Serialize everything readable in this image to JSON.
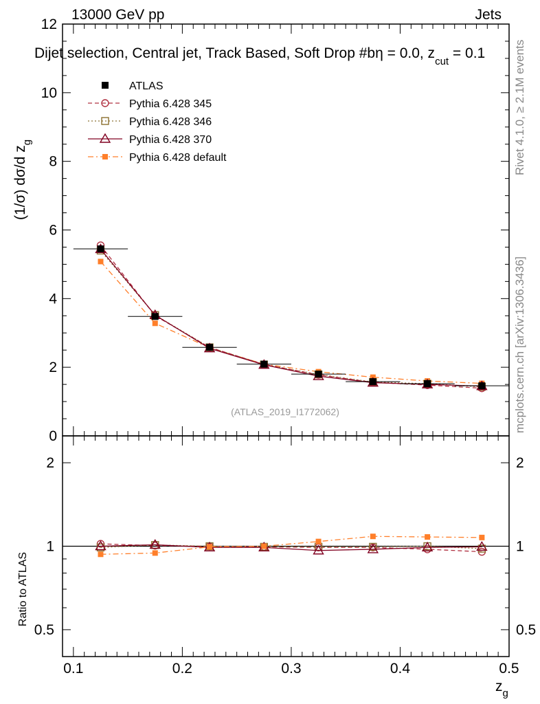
{
  "header": {
    "energy_label": "13000 GeV pp",
    "category_label": "Jets",
    "plot_title_main": "Dijet selection, Central jet, Track Based, Soft Drop #b",
    "plot_title_eta": "η = 0.0, z",
    "plot_title_cut_sub": "cut",
    "plot_title_value": " = 0.1"
  },
  "side_labels": {
    "rivet": "Rivet 4.1.0, ≥ 2.1M events",
    "mcplots": "mcplots.cern.ch [arXiv:1306.3436]"
  },
  "watermark": "(ATLAS_2019_I1772062)",
  "colors": {
    "atlas": "#000000",
    "p345": "#b03040",
    "p346": "#8b7030",
    "p370": "#800020",
    "pdefault": "#ff7f2a"
  },
  "chart_data": [
    {
      "type": "line",
      "panel": "main",
      "ylabel": "(1/σ) dσ/d z",
      "ylabel_sub": "g",
      "ylim": [
        0,
        12
      ],
      "xlim": [
        0.09,
        0.5
      ],
      "yticks": [
        "0",
        "2",
        "4",
        "6",
        "8",
        "10",
        "12"
      ],
      "x": [
        0.125,
        0.175,
        0.225,
        0.275,
        0.325,
        0.375,
        0.425,
        0.475
      ],
      "series": [
        {
          "name": "ATLAS",
          "marker": "square-filled",
          "values": [
            5.45,
            3.48,
            2.58,
            2.09,
            1.8,
            1.58,
            1.52,
            1.46
          ]
        },
        {
          "name": "Pythia 6.428 345",
          "marker": "circle-open",
          "style": "dashed",
          "values": [
            5.55,
            3.5,
            2.58,
            2.08,
            1.78,
            1.56,
            1.48,
            1.39
          ]
        },
        {
          "name": "Pythia 6.428 346",
          "marker": "square-open",
          "style": "dotted",
          "values": [
            5.4,
            3.52,
            2.58,
            2.08,
            1.79,
            1.57,
            1.52,
            1.43
          ]
        },
        {
          "name": "Pythia 6.428 370",
          "marker": "triangle-open",
          "style": "solid",
          "values": [
            5.44,
            3.52,
            2.55,
            2.07,
            1.74,
            1.55,
            1.5,
            1.45
          ]
        },
        {
          "name": "Pythia 6.428 default",
          "marker": "square-filled-small",
          "style": "dashdot",
          "values": [
            5.08,
            3.28,
            2.57,
            2.09,
            1.87,
            1.71,
            1.6,
            1.53
          ]
        }
      ]
    },
    {
      "type": "line",
      "panel": "ratio",
      "ylabel": "Ratio to ATLAS",
      "xlabel": "z",
      "xlabel_sub": "g",
      "ylim": [
        0.4,
        2.5
      ],
      "yscale": "log",
      "yticks": [
        "0.5",
        "1",
        "2"
      ],
      "xticks": [
        "0.1",
        "0.2",
        "0.3",
        "0.4",
        "0.5"
      ],
      "x": [
        0.125,
        0.175,
        0.225,
        0.275,
        0.325,
        0.375,
        0.425,
        0.475
      ],
      "series": [
        {
          "name": "Pythia 6.428 345",
          "values": [
            1.02,
            1.005,
            1.0,
            0.995,
            0.99,
            0.99,
            0.975,
            0.955
          ]
        },
        {
          "name": "Pythia 6.428 346",
          "values": [
            0.99,
            1.01,
            1.0,
            0.995,
            0.995,
            0.995,
            1.0,
            0.98
          ]
        },
        {
          "name": "Pythia 6.428 370",
          "values": [
            1.0,
            1.012,
            0.99,
            0.99,
            0.965,
            0.975,
            0.99,
            0.995
          ]
        },
        {
          "name": "Pythia 6.428 default",
          "values": [
            0.935,
            0.945,
            0.995,
            1.0,
            1.04,
            1.085,
            1.08,
            1.075
          ]
        }
      ]
    }
  ]
}
